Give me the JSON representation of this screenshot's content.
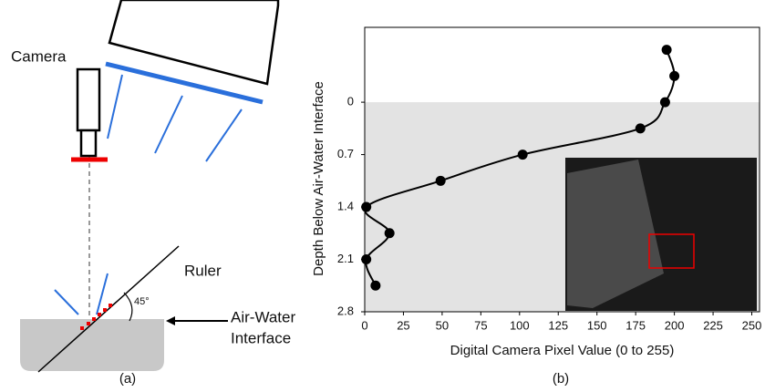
{
  "chart_data": {
    "type": "line",
    "x_label": "Digital Camera Pixel Value (0 to 255)",
    "y_label": "Depth Below Air-Water Interface",
    "x": [
      195,
      200,
      194,
      178,
      102,
      49,
      1,
      16,
      1,
      7
    ],
    "y": [
      -0.7,
      -0.35,
      0,
      0.35,
      0.7,
      1.05,
      1.4,
      1.75,
      2.1,
      2.45
    ],
    "color": "#000000",
    "xlim": [
      0,
      255
    ],
    "xticks": [
      0,
      25,
      50,
      75,
      100,
      125,
      150,
      175,
      200,
      225,
      250
    ],
    "ylim": [
      2.8,
      -1
    ],
    "yticks": [
      0,
      0.7,
      1.4,
      2.1,
      2.8
    ],
    "y_inverted": true,
    "panel_label": "(b)"
  },
  "diagram": {
    "camera": "Camera",
    "ruler": "Ruler",
    "angle": "45°",
    "interface_line1": "Air-Water",
    "interface_line2": "Interface",
    "panel_label": "(a)"
  }
}
